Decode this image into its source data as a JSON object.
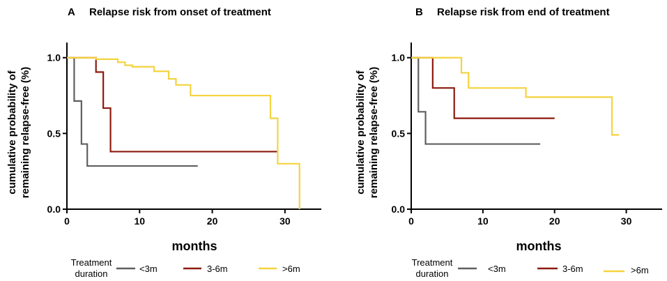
{
  "legend": {
    "title_line1": "Treatment",
    "title_line2": "duration"
  },
  "chart_data": [
    {
      "panel_letter": "A",
      "title": "Relapse risk from onset of treatment",
      "type": "line",
      "step": true,
      "xlabel": "months",
      "ylabel_line1": "cumulative probability of",
      "ylabel_line2": "remaining relapse-free (%)",
      "xlim": [
        0,
        35
      ],
      "ylim": [
        0,
        1.1
      ],
      "xticks": [
        0,
        10,
        20,
        30
      ],
      "xtick_labels": [
        "0",
        "10",
        "20",
        "30"
      ],
      "yticks": [
        0,
        0.5,
        1
      ],
      "ytick_labels": [
        "0.0",
        "0.5",
        "1.0"
      ],
      "series": [
        {
          "name": "<3m",
          "color": "#5f5f5f",
          "x": [
            0,
            1,
            1.5,
            2,
            2.8,
            18
          ],
          "y": [
            1.0,
            0.714,
            0.714,
            0.43,
            0.285,
            0.285
          ]
        },
        {
          "name": "3-6m",
          "color": "#8b1a0e",
          "x": [
            0,
            4,
            5,
            6,
            29
          ],
          "y": [
            1.0,
            0.905,
            0.667,
            0.38,
            0.38
          ]
        },
        {
          "name": ">6m",
          "color": "#f5d33f",
          "x": [
            0,
            4,
            7,
            8,
            9,
            12,
            14,
            15,
            17,
            28,
            29,
            32,
            32
          ],
          "y": [
            1.0,
            0.99,
            0.97,
            0.95,
            0.94,
            0.91,
            0.86,
            0.82,
            0.75,
            0.6,
            0.3,
            0.3,
            0.0
          ]
        }
      ]
    },
    {
      "panel_letter": "B",
      "title": "Relapse risk from end of treatment",
      "type": "line",
      "step": true,
      "xlabel": "months",
      "ylabel_line1": "cumulative probability of",
      "ylabel_line2": "remaining relapse-free (%)",
      "xlim": [
        0,
        35
      ],
      "ylim": [
        0,
        1.1
      ],
      "xticks": [
        0,
        10,
        20,
        30
      ],
      "xtick_labels": [
        "0",
        "10",
        "20",
        "30"
      ],
      "yticks": [
        0,
        0.5,
        1
      ],
      "ytick_labels": [
        "0.0",
        "0.5",
        "1.0"
      ],
      "series": [
        {
          "name": "<3m",
          "color": "#5f5f5f",
          "x": [
            0,
            1,
            2,
            18
          ],
          "y": [
            1.0,
            0.643,
            0.43,
            0.43
          ]
        },
        {
          "name": "3-6m",
          "color": "#8b1a0e",
          "x": [
            0,
            3,
            6,
            20
          ],
          "y": [
            1.0,
            0.8,
            0.6,
            0.6
          ]
        },
        {
          "name": ">6m",
          "color": "#f5d33f",
          "x": [
            0,
            7,
            8,
            16,
            28,
            29
          ],
          "y": [
            1.0,
            0.9,
            0.8,
            0.74,
            0.49,
            0.49
          ]
        }
      ]
    }
  ]
}
